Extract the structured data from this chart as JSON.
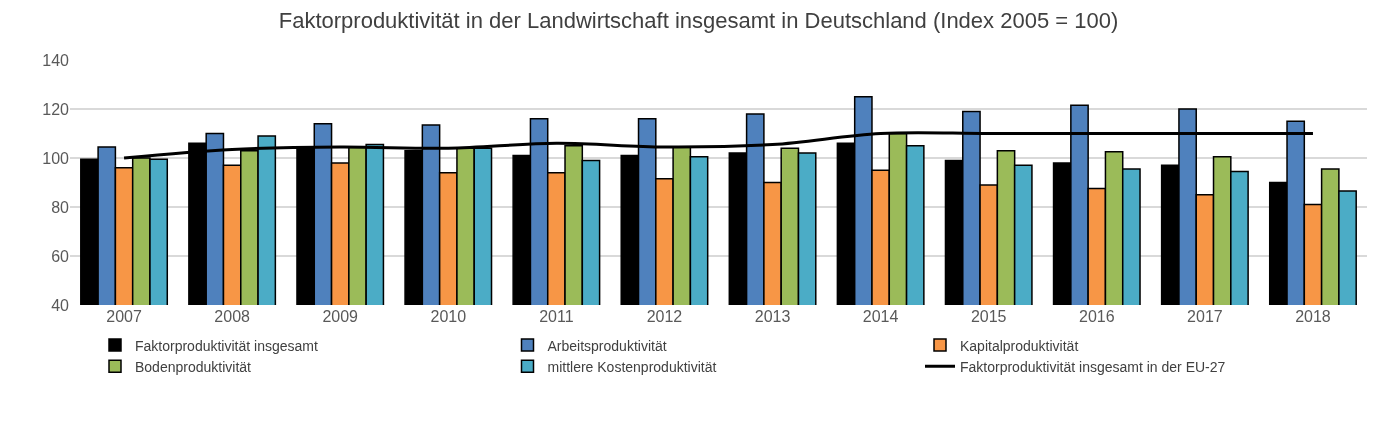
{
  "chart_data": {
    "type": "bar",
    "title": "Faktorproduktivität in der Landwirtschaft insgesamt in Deutschland (Index 2005 = 100)",
    "categories": [
      "2007",
      "2008",
      "2009",
      "2010",
      "2011",
      "2012",
      "2013",
      "2014",
      "2015",
      "2016",
      "2017",
      "2018"
    ],
    "series": [
      {
        "name": "Faktorproduktivität insgesamt",
        "color": "#000000",
        "values": [
          99.5,
          106,
          104.5,
          103,
          101,
          101,
          102,
          106,
          99,
          98,
          97,
          90
        ]
      },
      {
        "name": "Arbeitsproduktivität",
        "color": "#4f81bd",
        "values": [
          104.5,
          110,
          114,
          113.5,
          116,
          116,
          118,
          125,
          119,
          121.5,
          120,
          115
        ]
      },
      {
        "name": "Kapitalproduktivität",
        "color": "#f79646",
        "values": [
          96,
          97,
          98,
          94,
          94,
          91.5,
          90,
          95,
          89,
          87.5,
          85,
          81
        ]
      },
      {
        "name": "Bodenproduktivität",
        "color": "#9bbb59",
        "values": [
          100,
          103,
          104.5,
          104,
          105,
          104.5,
          104,
          110,
          103,
          102.5,
          100.5,
          95.5
        ]
      },
      {
        "name": "mittlere Kostenproduktivität",
        "color": "#4bacc6",
        "values": [
          99.5,
          109,
          105.5,
          104,
          99,
          100.5,
          102,
          105,
          97,
          95.5,
          94.5,
          86.5
        ]
      },
      {
        "name": "Faktorproduktivität insgesamt in der EU-27",
        "color": "#000000",
        "type": "line",
        "values": [
          100,
          103.5,
          104.5,
          104,
          106,
          104.5,
          105.5,
          110,
          110,
          110,
          110,
          110
        ]
      }
    ],
    "ylim": [
      40,
      140
    ],
    "yticks": [
      40,
      60,
      80,
      100,
      120,
      140
    ],
    "grid": "y",
    "legend": "bottom",
    "marker": "none",
    "line_style": "solid"
  }
}
